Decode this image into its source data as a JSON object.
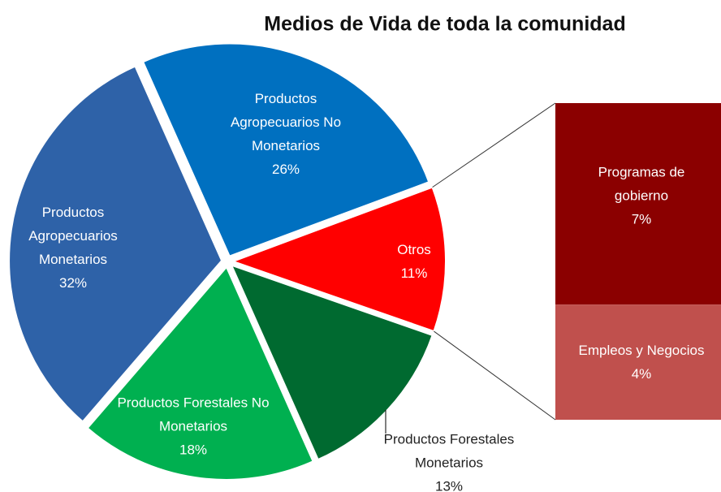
{
  "chart_data": {
    "type": "pie",
    "title": "Medios de Vida de toda la comunidad",
    "categories": [
      "Productos Agropecuarios No Monetarios",
      "Otros",
      "Productos Forestales Monetarios",
      "Productos Forestales No Monetarios",
      "Productos Agropecuarios Monetarios"
    ],
    "values": [
      26,
      11,
      13,
      18,
      32
    ],
    "value_labels": [
      "26%",
      "11%",
      "13%",
      "18%",
      "32%"
    ],
    "colors": [
      "#0070c0",
      "#ff0000",
      "#006a30",
      "#00b050",
      "#2e62a8"
    ],
    "bar_of_pie": {
      "categories": [
        "Programas de gobierno",
        "Empleos y Negocios"
      ],
      "values": [
        7,
        4
      ],
      "value_labels": [
        "7%",
        "4%"
      ],
      "colors": [
        "#8b0000",
        "#c0504d"
      ]
    }
  }
}
